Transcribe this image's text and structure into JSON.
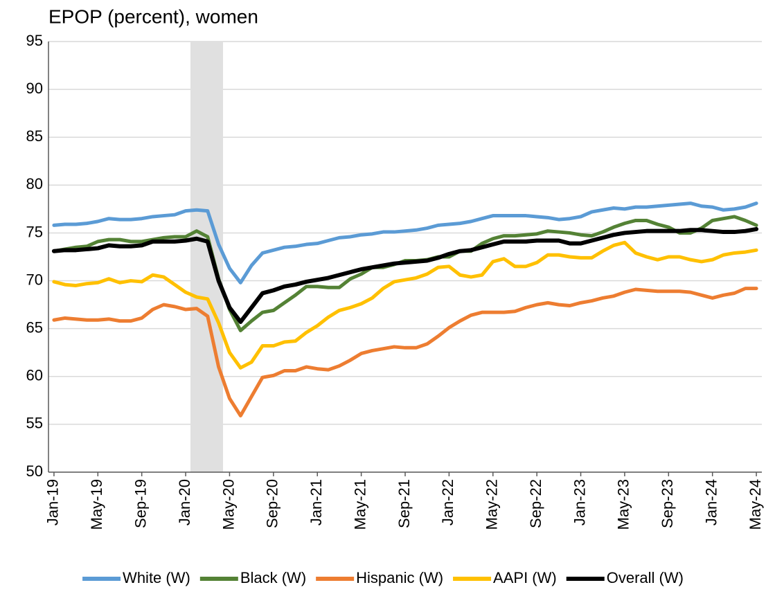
{
  "chart_data": {
    "type": "line",
    "title": "EPOP (percent), women",
    "categories": [
      "Jan-19",
      null,
      null,
      null,
      "May-19",
      null,
      null,
      null,
      "Sep-19",
      null,
      null,
      null,
      "Jan-20",
      null,
      null,
      null,
      "May-20",
      null,
      null,
      null,
      "Sep-20",
      null,
      null,
      null,
      "Jan-21",
      null,
      null,
      null,
      "May-21",
      null,
      null,
      null,
      "Sep-21",
      null,
      null,
      null,
      "Jan-22",
      null,
      null,
      null,
      "May-22",
      null,
      null,
      null,
      "Sep-22",
      null,
      null,
      null,
      "Jan-23",
      null,
      null,
      null,
      "May-23",
      null,
      null,
      null,
      "Sep-23",
      null,
      null,
      null,
      "Jan-24",
      null,
      null,
      null,
      "May-24"
    ],
    "ylim": [
      50,
      95
    ],
    "yticks": [
      50,
      55,
      60,
      65,
      70,
      75,
      80,
      85,
      90,
      95
    ],
    "grid": true,
    "series": [
      {
        "name": "White (W)",
        "color": "#5b9bd5",
        "values": [
          75.8,
          75.9,
          75.9,
          76.0,
          76.2,
          76.5,
          76.4,
          76.4,
          76.5,
          76.7,
          76.8,
          76.9,
          77.3,
          77.4,
          77.3,
          73.8,
          71.3,
          69.8,
          71.6,
          72.9,
          73.2,
          73.5,
          73.6,
          73.8,
          73.9,
          74.2,
          74.5,
          74.6,
          74.8,
          74.9,
          75.1,
          75.1,
          75.2,
          75.3,
          75.5,
          75.8,
          75.9,
          76.0,
          76.2,
          76.5,
          76.8,
          76.8,
          76.8,
          76.8,
          76.7,
          76.6,
          76.4,
          76.5,
          76.7,
          77.2,
          77.4,
          77.6,
          77.5,
          77.7,
          77.7,
          77.8,
          77.9,
          78.0,
          78.1,
          77.8,
          77.7,
          77.4,
          77.5,
          77.7,
          78.1
        ]
      },
      {
        "name": "Black (W)",
        "color": "#548235",
        "values": [
          73.1,
          73.3,
          73.5,
          73.6,
          74.1,
          74.3,
          74.3,
          74.1,
          74.1,
          74.3,
          74.5,
          74.6,
          74.6,
          75.2,
          74.6,
          70.2,
          67.0,
          64.8,
          65.8,
          66.7,
          66.9,
          67.7,
          68.5,
          69.4,
          69.4,
          69.3,
          69.3,
          70.2,
          70.7,
          71.4,
          71.4,
          71.7,
          72.1,
          72.1,
          72.2,
          72.5,
          72.5,
          73.1,
          73.1,
          73.9,
          74.4,
          74.7,
          74.7,
          74.8,
          74.9,
          75.2,
          75.1,
          75.0,
          74.8,
          74.7,
          75.1,
          75.6,
          76.0,
          76.3,
          76.3,
          75.9,
          75.6,
          75.0,
          75.0,
          75.5,
          76.3,
          76.5,
          76.7,
          76.3,
          75.8
        ]
      },
      {
        "name": "Hispanic (W)",
        "color": "#ed7d31",
        "values": [
          65.9,
          66.1,
          66.0,
          65.9,
          65.9,
          66.0,
          65.8,
          65.8,
          66.1,
          67.0,
          67.5,
          67.3,
          67.0,
          67.1,
          66.3,
          61.0,
          57.7,
          55.9,
          57.9,
          59.9,
          60.1,
          60.6,
          60.6,
          61.0,
          60.8,
          60.7,
          61.1,
          61.7,
          62.4,
          62.7,
          62.9,
          63.1,
          63.0,
          63.0,
          63.4,
          64.2,
          65.1,
          65.8,
          66.4,
          66.7,
          66.7,
          66.7,
          66.8,
          67.2,
          67.5,
          67.7,
          67.5,
          67.4,
          67.7,
          67.9,
          68.2,
          68.4,
          68.8,
          69.1,
          69.0,
          68.9,
          68.9,
          68.9,
          68.8,
          68.5,
          68.2,
          68.5,
          68.7,
          69.2,
          69.2
        ]
      },
      {
        "name": "AAPI (W)",
        "color": "#ffc000",
        "values": [
          69.9,
          69.6,
          69.5,
          69.7,
          69.8,
          70.2,
          69.8,
          70.0,
          69.9,
          70.6,
          70.4,
          69.6,
          68.8,
          68.3,
          68.1,
          65.6,
          62.5,
          60.9,
          61.5,
          63.2,
          63.2,
          63.6,
          63.7,
          64.6,
          65.3,
          66.2,
          66.9,
          67.2,
          67.6,
          68.2,
          69.2,
          69.9,
          70.1,
          70.3,
          70.7,
          71.4,
          71.5,
          70.6,
          70.4,
          70.6,
          72.0,
          72.3,
          71.5,
          71.5,
          71.9,
          72.7,
          72.7,
          72.5,
          72.4,
          72.4,
          73.1,
          73.7,
          74.0,
          72.9,
          72.5,
          72.2,
          72.5,
          72.5,
          72.2,
          72.0,
          72.2,
          72.7,
          72.9,
          73.0,
          73.2
        ]
      },
      {
        "name": "Overall (W)",
        "color": "#000000",
        "values": [
          73.1,
          73.2,
          73.2,
          73.3,
          73.4,
          73.7,
          73.6,
          73.6,
          73.7,
          74.1,
          74.1,
          74.1,
          74.2,
          74.4,
          74.1,
          70.0,
          67.2,
          65.7,
          67.2,
          68.7,
          69.0,
          69.4,
          69.6,
          69.9,
          70.1,
          70.3,
          70.6,
          70.9,
          71.2,
          71.4,
          71.6,
          71.8,
          71.9,
          72.0,
          72.1,
          72.4,
          72.8,
          73.1,
          73.2,
          73.5,
          73.8,
          74.1,
          74.1,
          74.1,
          74.2,
          74.2,
          74.2,
          73.9,
          73.9,
          74.2,
          74.5,
          74.8,
          75.0,
          75.1,
          75.2,
          75.2,
          75.2,
          75.2,
          75.3,
          75.3,
          75.2,
          75.1,
          75.1,
          75.2,
          75.4
        ]
      }
    ]
  }
}
